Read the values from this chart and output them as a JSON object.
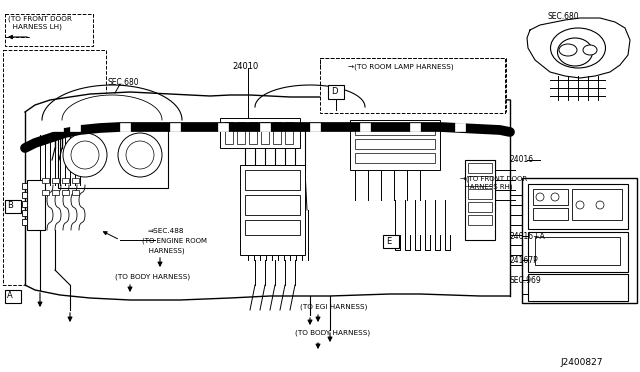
{
  "bg_color": "#ffffff",
  "labels": {
    "top_left_1": "(TO FRONT DOOR",
    "top_left_2": "  HARNESS LH)",
    "sec680_left": "SEC.680",
    "part_24010": "24010",
    "room_lamp": "(TO ROOM LAMP HARNESS)",
    "sec680_right": "SEC.680",
    "label_D": "D",
    "label_E": "E",
    "label_A": "A",
    "label_B": "B",
    "sec488": "SEC.488",
    "engine_room_1": "(TO ENGINE ROOM",
    "engine_room_2": "   HARNESS)",
    "body_harness_left": "(TO BODY HARNESS)",
    "front_door_rh_1": "(TO FRONT DOOR",
    "front_door_rh_2": "  HARNESS RH)",
    "label_24016": "24016",
    "label_24016A": "24016+A",
    "label_24167P": "24167P",
    "sec969": "SEC.969",
    "egi_harness": "(TO EGI HARNESS)",
    "body_harness_right": "(TO BODY HARNESS)",
    "part_number": "J2400827"
  }
}
